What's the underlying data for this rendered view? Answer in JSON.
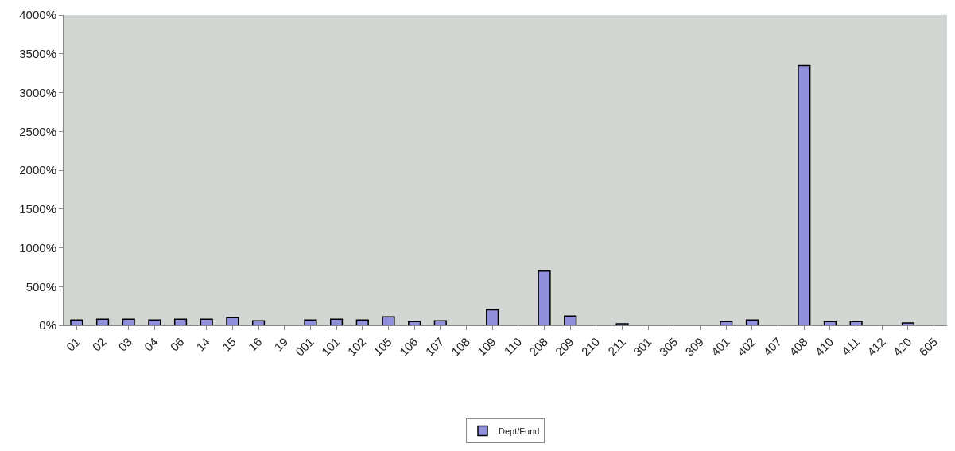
{
  "chart_data": {
    "type": "bar",
    "categories": [
      "01",
      "02",
      "03",
      "04",
      "06",
      "14",
      "15",
      "16",
      "19",
      "001",
      "101",
      "102",
      "105",
      "106",
      "107",
      "108",
      "109",
      "110",
      "208",
      "209",
      "210",
      "211",
      "301",
      "305",
      "309",
      "401",
      "402",
      "407",
      "408",
      "410",
      "411",
      "412",
      "420",
      "605"
    ],
    "series": [
      {
        "name": "Dept/Fund",
        "color": "#9090dc",
        "values": [
          70,
          80,
          80,
          70,
          80,
          80,
          100,
          60,
          null,
          70,
          80,
          70,
          110,
          50,
          60,
          null,
          200,
          null,
          700,
          120,
          null,
          20,
          null,
          null,
          null,
          50,
          70,
          null,
          3350,
          50,
          50,
          null,
          30,
          null
        ]
      }
    ],
    "ylim": [
      0,
      4000
    ],
    "yticks": [
      {
        "value": 0,
        "label": "0%"
      },
      {
        "value": 500,
        "label": "500%"
      },
      {
        "value": 1000,
        "label": "1000%"
      },
      {
        "value": 1500,
        "label": "1500%"
      },
      {
        "value": 2000,
        "label": "2000%"
      },
      {
        "value": 2500,
        "label": "2500%"
      },
      {
        "value": 3000,
        "label": "3000%"
      },
      {
        "value": 3500,
        "label": "3500%"
      },
      {
        "value": 4000,
        "label": "4000%"
      }
    ],
    "grid": false,
    "legend": "bottom"
  }
}
